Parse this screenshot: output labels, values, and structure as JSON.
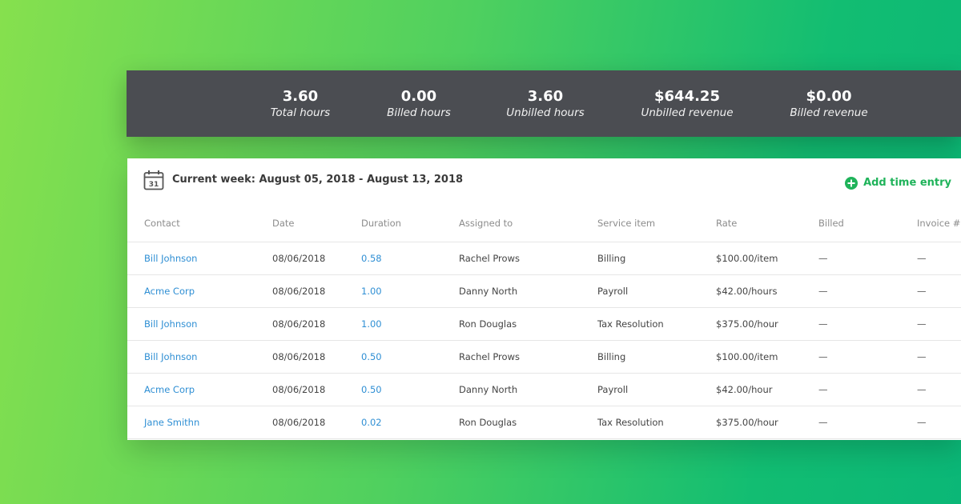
{
  "stats": [
    {
      "value": "3.60",
      "label": "Total hours"
    },
    {
      "value": "0.00",
      "label": "Billed hours"
    },
    {
      "value": "3.60",
      "label": "Unbilled hours"
    },
    {
      "value": "$644.25",
      "label": "Unbilled revenue"
    },
    {
      "value": "$0.00",
      "label": "Billed revenue"
    }
  ],
  "header": {
    "calendar_icon_day": "31",
    "week_title": "Current week: August 05, 2018 - August 13, 2018",
    "add_entry_label": "Add time entry"
  },
  "table": {
    "columns": [
      "Contact",
      "Date",
      "Duration",
      "Assigned to",
      "Service item",
      "Rate",
      "Billed",
      "Invoice #"
    ],
    "rows": [
      {
        "contact": "Bill Johnson",
        "date": "08/06/2018",
        "duration": "0.58",
        "assigned": "Rachel Prows",
        "service": "Billing",
        "rate": "$100.00/item",
        "billed": "—",
        "invoice": "—"
      },
      {
        "contact": "Acme Corp",
        "date": "08/06/2018",
        "duration": "1.00",
        "assigned": "Danny North",
        "service": "Payroll",
        "rate": "$42.00/hours",
        "billed": "—",
        "invoice": "—"
      },
      {
        "contact": "Bill Johnson",
        "date": "08/06/2018",
        "duration": "1.00",
        "assigned": "Ron Douglas",
        "service": "Tax Resolution",
        "rate": "$375.00/hour",
        "billed": "—",
        "invoice": "—"
      },
      {
        "contact": "Bill Johnson",
        "date": "08/06/2018",
        "duration": "0.50",
        "assigned": "Rachel Prows",
        "service": "Billing",
        "rate": "$100.00/item",
        "billed": "—",
        "invoice": "—"
      },
      {
        "contact": "Acme Corp",
        "date": "08/06/2018",
        "duration": "0.50",
        "assigned": "Danny North",
        "service": "Payroll",
        "rate": "$42.00/hour",
        "billed": "—",
        "invoice": "—"
      },
      {
        "contact": "Jane Smithn",
        "date": "08/06/2018",
        "duration": "0.02",
        "assigned": "Ron Douglas",
        "service": "Tax Resolution",
        "rate": "$375.00/hour",
        "billed": "—",
        "invoice": "—"
      }
    ]
  },
  "colors": {
    "accent_green": "#1fb35a",
    "link_blue": "#2f8fd4",
    "stats_bar_bg": "#4b4d52"
  },
  "icons": {
    "calendar": "calendar-icon",
    "add": "plus-circle-icon"
  }
}
